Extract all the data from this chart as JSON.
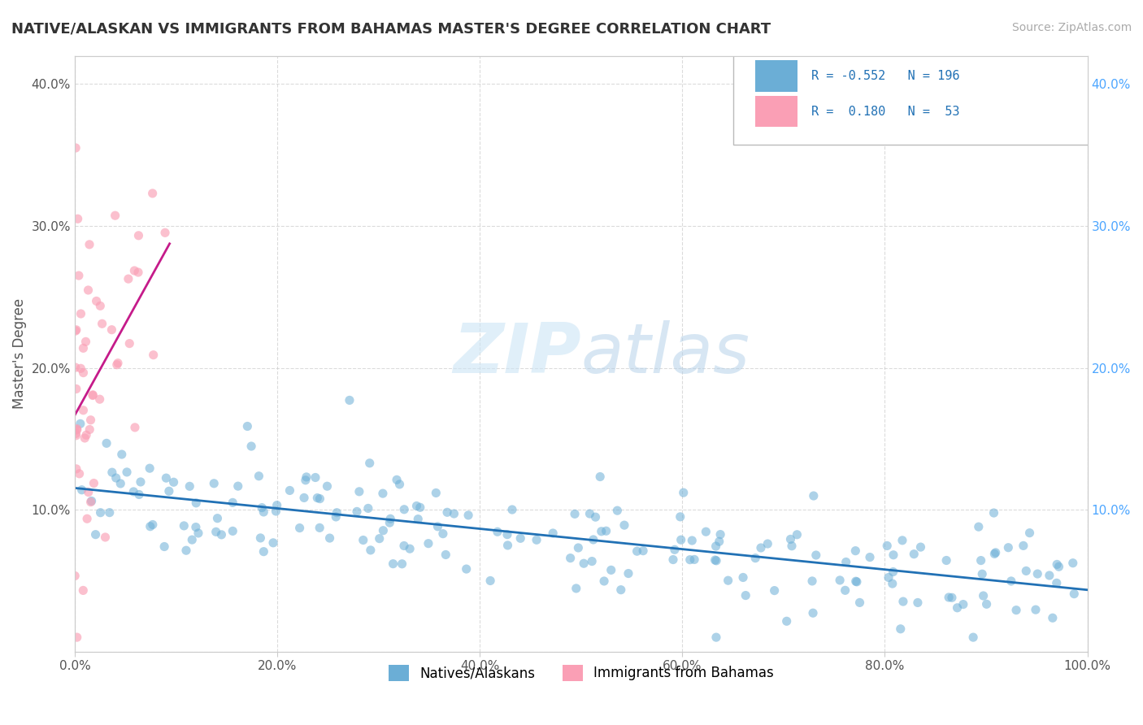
{
  "title": "NATIVE/ALASKAN VS IMMIGRANTS FROM BAHAMAS MASTER'S DEGREE CORRELATION CHART",
  "source": "Source: ZipAtlas.com",
  "ylabel": "Master's Degree",
  "xlim": [
    0,
    1.0
  ],
  "ylim": [
    0,
    0.42
  ],
  "blue_R": -0.552,
  "blue_N": 196,
  "pink_R": 0.18,
  "pink_N": 53,
  "blue_color": "#6baed6",
  "pink_color": "#fa9fb5",
  "blue_line_color": "#2171b5",
  "pink_line_color": "#c51b8a",
  "legend_label_blue": "Natives/Alaskans",
  "legend_label_pink": "Immigrants from Bahamas",
  "watermark_zip": "ZIP",
  "watermark_atlas": "atlas",
  "background_color": "#ffffff",
  "grid_color": "#cccccc"
}
